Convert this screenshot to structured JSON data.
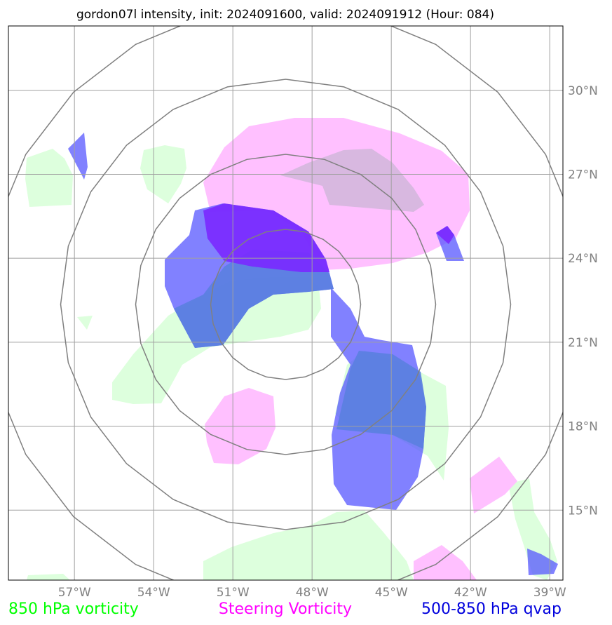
{
  "title": "gordon07l intensity, init: 2024091600, valid: 2024091912 (Hour: 084)",
  "map": {
    "lon_range": [
      -59.5,
      -38.5
    ],
    "lat_range": [
      12.5,
      32.3
    ],
    "lon_ticks": [
      {
        "value": -57,
        "label": "57°W"
      },
      {
        "value": -54,
        "label": "54°W"
      },
      {
        "value": -51,
        "label": "51°W"
      },
      {
        "value": -48,
        "label": "48°W"
      },
      {
        "value": -45,
        "label": "45°W"
      },
      {
        "value": -42,
        "label": "42°W"
      },
      {
        "value": -39,
        "label": "39°W"
      }
    ],
    "lat_ticks": [
      {
        "value": 30,
        "label": "30°N"
      },
      {
        "value": 27,
        "label": "27°N"
      },
      {
        "value": 24,
        "label": "24°N"
      },
      {
        "value": 21,
        "label": "21°N"
      },
      {
        "value": 18,
        "label": "18°N"
      },
      {
        "value": 15,
        "label": "15°N"
      }
    ],
    "range_ring_center": {
      "lon": -49.0,
      "lat": 22.35
    },
    "gridline_color": "#a0a0a0",
    "ring_color": "#808080"
  },
  "legend": [
    {
      "label": "850 hPa vorticity",
      "color": "#00ff00"
    },
    {
      "label": "Steering Vorticity",
      "color": "#ff00ff"
    },
    {
      "label": "500-850 hPa qvap",
      "color": "#0000dd"
    }
  ],
  "fields": {
    "vort850_color": "#ddffdd",
    "steering_color": "#ffc0ff",
    "qvap_color": "#5050ff",
    "qvap_dark_color": "#7a28ff"
  }
}
